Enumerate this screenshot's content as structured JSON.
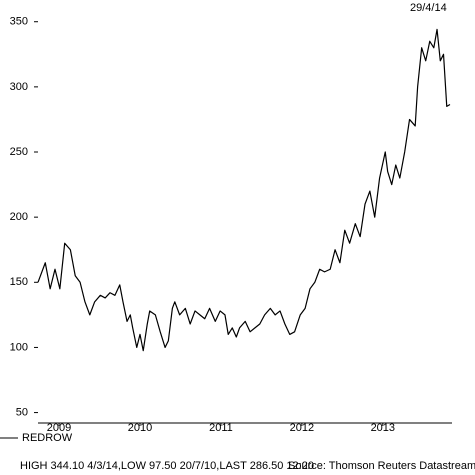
{
  "chart_data": {
    "type": "line",
    "date_label": "29/4/14",
    "annotation": "HIGH 344.10 4/3/14,LOW 97.50 20/7/10,LAST 286.50 12:20",
    "source": "Source: Thomson Reuters Datastream",
    "xlim": [
      2009.24,
      2014.33
    ],
    "xticks": [
      {
        "value": 2009.5,
        "label": "2009"
      },
      {
        "value": 2010.5,
        "label": "2010"
      },
      {
        "value": 2011.5,
        "label": "2011"
      },
      {
        "value": 2012.5,
        "label": "2012"
      },
      {
        "value": 2013.5,
        "label": "2013"
      }
    ],
    "ylim": [
      42,
      359
    ],
    "yticks": [
      50,
      100,
      150,
      200,
      250,
      300,
      350
    ],
    "x": [
      2009.24,
      2009.33,
      2009.39,
      2009.45,
      2009.51,
      2009.57,
      2009.64,
      2009.7,
      2009.76,
      2009.82,
      2009.88,
      2009.94,
      2010.01,
      2010.07,
      2010.13,
      2010.19,
      2010.25,
      2010.29,
      2010.34,
      2010.38,
      2010.41,
      2010.46,
      2010.5,
      2010.54,
      2010.59,
      2010.62,
      2010.69,
      2010.75,
      2010.81,
      2010.85,
      2010.9,
      2010.93,
      2010.99,
      2011.06,
      2011.12,
      2011.18,
      2011.24,
      2011.3,
      2011.36,
      2011.43,
      2011.49,
      2011.55,
      2011.59,
      2011.64,
      2011.69,
      2011.73,
      2011.8,
      2011.86,
      2011.92,
      2011.98,
      2012.04,
      2012.11,
      2012.17,
      2012.23,
      2012.29,
      2012.35,
      2012.41,
      2012.48,
      2012.54,
      2012.6,
      2012.66,
      2012.72,
      2012.78,
      2012.85,
      2012.91,
      2012.97,
      2013.03,
      2013.09,
      2013.16,
      2013.22,
      2013.28,
      2013.34,
      2013.4,
      2013.46,
      2013.53,
      2013.56,
      2013.61,
      2013.66,
      2013.71,
      2013.77,
      2013.83,
      2013.9,
      2013.93,
      2013.98,
      2014.03,
      2014.08,
      2014.13,
      2014.17,
      2014.21,
      2014.25,
      2014.29,
      2014.33
    ],
    "series": [
      {
        "name": "REDROW",
        "color": "#000000",
        "values": [
          150,
          165,
          145,
          160,
          145,
          180,
          175,
          155,
          150,
          135,
          125,
          135,
          140,
          138,
          142,
          140,
          148,
          135,
          120,
          125,
          115,
          100,
          110,
          97.5,
          118,
          128,
          125,
          112,
          100,
          105,
          130,
          135,
          125,
          130,
          118,
          128,
          125,
          122,
          130,
          120,
          128,
          125,
          110,
          115,
          108,
          115,
          120,
          112,
          115,
          118,
          125,
          130,
          125,
          128,
          118,
          110,
          112,
          125,
          130,
          145,
          150,
          160,
          158,
          160,
          175,
          165,
          190,
          180,
          195,
          185,
          210,
          220,
          200,
          230,
          250,
          235,
          225,
          240,
          230,
          250,
          275,
          270,
          300,
          330,
          320,
          335,
          330,
          344.1,
          320,
          325,
          285,
          286.5
        ]
      }
    ]
  }
}
